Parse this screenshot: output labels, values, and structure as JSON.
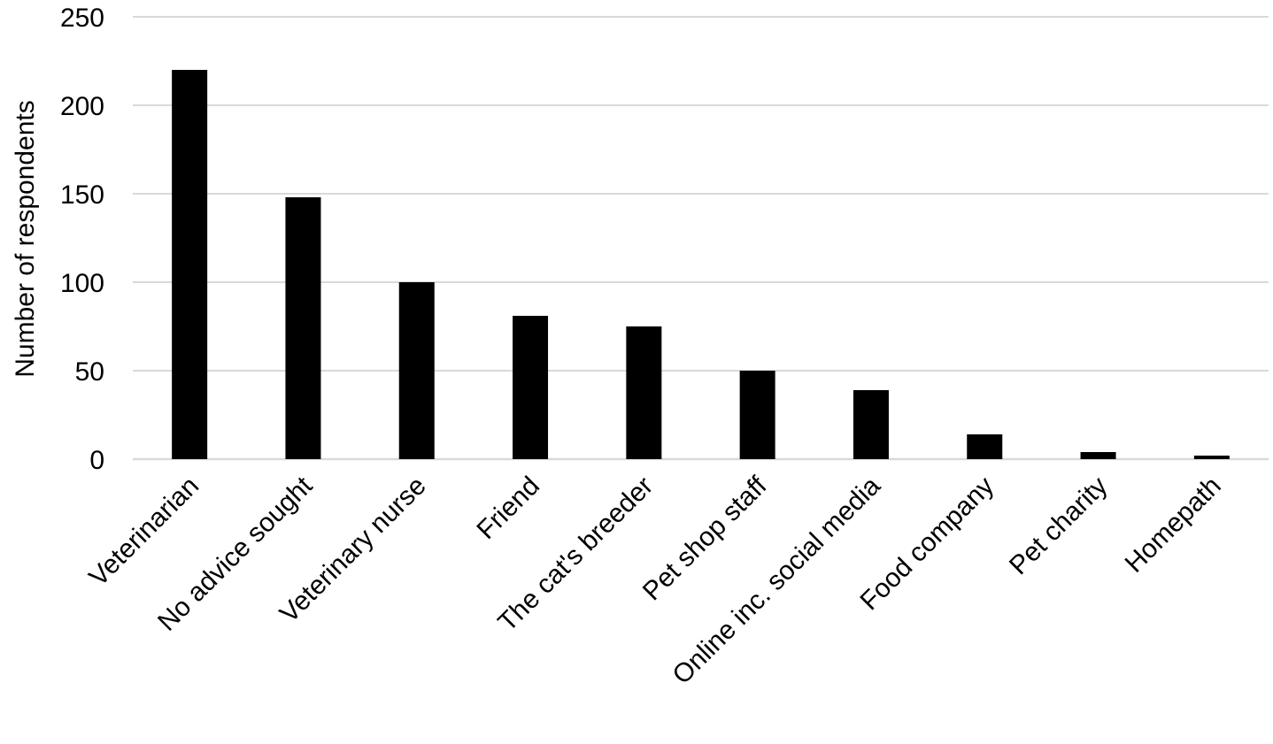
{
  "chart_data": {
    "type": "bar",
    "title": "",
    "xlabel": "",
    "ylabel": "Number of respondents",
    "categories": [
      "Veterinarian",
      "No advice sought",
      "Veterinary nurse",
      "Friend",
      "The cat's breeder",
      "Pet shop staff",
      "Online inc. social media",
      "Food company",
      "Pet charity",
      "Homepath"
    ],
    "values": [
      220,
      148,
      100,
      81,
      75,
      50,
      39,
      14,
      4,
      2
    ],
    "ylim": [
      0,
      250
    ],
    "yticks": [
      "0",
      "50",
      "100",
      "150",
      "200",
      "250"
    ],
    "grid": true,
    "legend": "none",
    "colors": {
      "bar": "#000000",
      "grid": "#d9d9d9",
      "axis": "#d9d9d9"
    }
  }
}
